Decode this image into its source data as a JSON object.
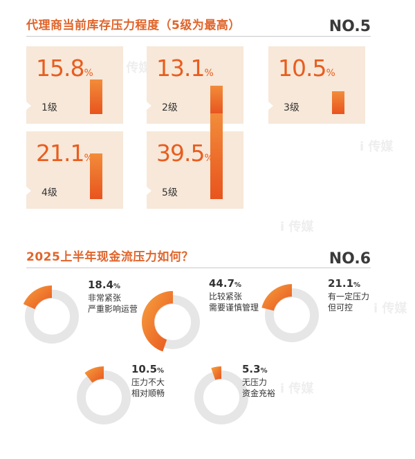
{
  "section1": {
    "title": "代理商当前库存压力程度（5级为最高）",
    "no": "NO.5"
  },
  "section2": {
    "title": "2025上半年现金流压力如何？",
    "no": "NO.6"
  },
  "watermark": "i 传媒",
  "chart_data": [
    {
      "type": "bar",
      "title": "代理商当前库存压力程度（5级为最高）",
      "categories": [
        "1级",
        "2级",
        "3级",
        "4级",
        "5级"
      ],
      "values": [
        15.8,
        13.1,
        10.5,
        21.1,
        39.5
      ],
      "value_labels": [
        "15.8",
        "13.1",
        "10.5",
        "21.1",
        "39.5"
      ],
      "unit": "%"
    },
    {
      "type": "pie",
      "title": "2025上半年现金流压力如何？",
      "categories": [
        "非常紧张严重影响运营",
        "比较紧张需要谨慎管理",
        "有一定压力但可控",
        "压力不大相对顺畅",
        "无压力资金充裕"
      ],
      "values": [
        18.4,
        44.7,
        21.1,
        10.5,
        5.3
      ],
      "value_labels": [
        "18.4",
        "44.7",
        "21.1",
        "10.5",
        "5.3"
      ],
      "label_lines": [
        [
          "非常紧张",
          "严重影响运营"
        ],
        [
          "比较紧张",
          "需要谨慎管理"
        ],
        [
          "有一定压力",
          "但可控"
        ],
        [
          "压力不大",
          "相对顺畅"
        ],
        [
          "无压力",
          "资金充裕"
        ]
      ],
      "unit": "%"
    }
  ]
}
